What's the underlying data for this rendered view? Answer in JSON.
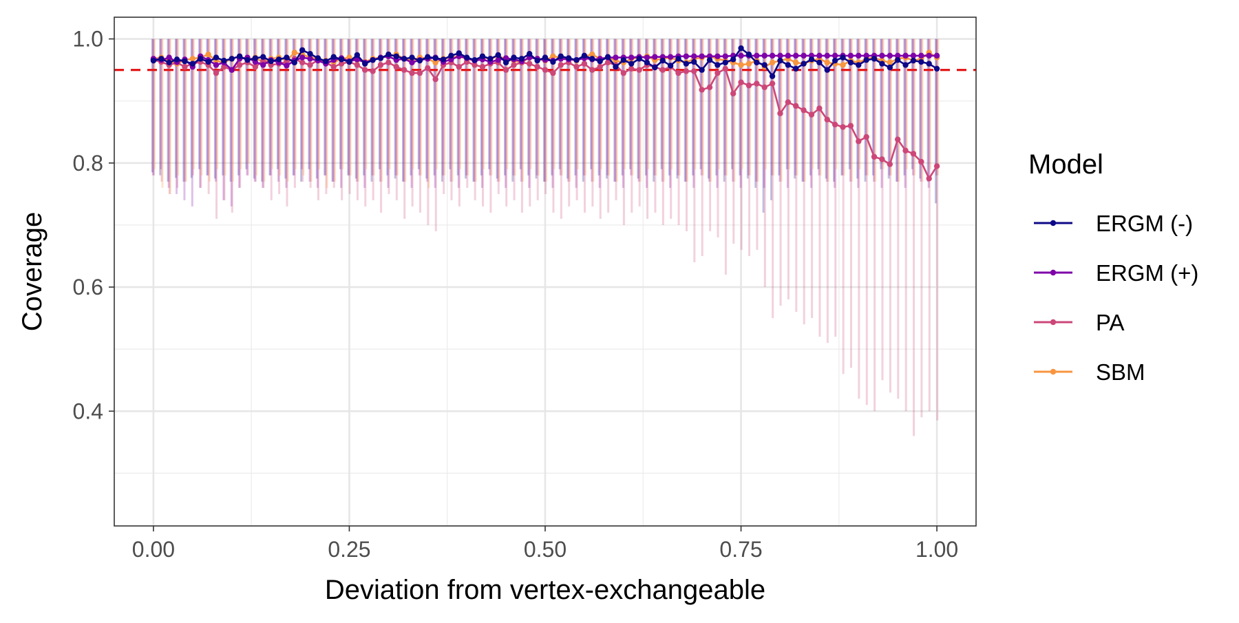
{
  "chart_data": {
    "type": "line",
    "xlabel": "Deviation from vertex-exchangeable",
    "ylabel": "Coverage",
    "xlim": [
      -0.05,
      1.05
    ],
    "ylim": [
      0.215,
      1.035
    ],
    "x_ticks": [
      0.0,
      0.25,
      0.5,
      0.75,
      1.0
    ],
    "x_tick_labels": [
      "0.00",
      "0.25",
      "0.50",
      "0.75",
      "1.00"
    ],
    "y_ticks": [
      0.4,
      0.6,
      0.8,
      1.0
    ],
    "y_tick_labels": [
      "0.4",
      "0.6",
      "0.8",
      "1.0"
    ],
    "reference_line": {
      "y": 0.95,
      "color": "#e41a1c",
      "style": "dashed"
    },
    "legend": {
      "title": "Model",
      "position": "right"
    },
    "grid": true,
    "x": [
      0.0,
      0.01,
      0.02,
      0.03,
      0.04,
      0.05,
      0.06,
      0.07,
      0.08,
      0.09,
      0.1,
      0.11,
      0.12,
      0.13,
      0.14,
      0.15,
      0.16,
      0.17,
      0.18,
      0.19,
      0.2,
      0.21,
      0.22,
      0.23,
      0.24,
      0.25,
      0.26,
      0.27,
      0.28,
      0.29,
      0.3,
      0.31,
      0.32,
      0.33,
      0.34,
      0.35,
      0.36,
      0.37,
      0.38,
      0.39,
      0.4,
      0.41,
      0.42,
      0.43,
      0.44,
      0.45,
      0.46,
      0.47,
      0.48,
      0.49,
      0.5,
      0.51,
      0.52,
      0.53,
      0.54,
      0.55,
      0.56,
      0.57,
      0.58,
      0.59,
      0.6,
      0.61,
      0.62,
      0.63,
      0.64,
      0.65,
      0.66,
      0.67,
      0.68,
      0.69,
      0.7,
      0.71,
      0.72,
      0.73,
      0.74,
      0.75,
      0.76,
      0.77,
      0.78,
      0.79,
      0.8,
      0.81,
      0.82,
      0.83,
      0.84,
      0.85,
      0.86,
      0.87,
      0.88,
      0.89,
      0.9,
      0.91,
      0.92,
      0.93,
      0.94,
      0.95,
      0.96,
      0.97,
      0.98,
      0.99,
      1.0
    ],
    "series": [
      {
        "name": "ERGM (-)",
        "color": "#0d0887",
        "values": [
          0.965,
          0.968,
          0.962,
          0.967,
          0.964,
          0.96,
          0.968,
          0.963,
          0.97,
          0.965,
          0.968,
          0.972,
          0.966,
          0.969,
          0.971,
          0.964,
          0.967,
          0.97,
          0.962,
          0.982,
          0.976,
          0.969,
          0.964,
          0.971,
          0.967,
          0.963,
          0.974,
          0.96,
          0.966,
          0.969,
          0.975,
          0.972,
          0.968,
          0.97,
          0.965,
          0.971,
          0.969,
          0.967,
          0.973,
          0.977,
          0.97,
          0.966,
          0.972,
          0.968,
          0.974,
          0.962,
          0.97,
          0.968,
          0.976,
          0.965,
          0.97,
          0.963,
          0.972,
          0.969,
          0.966,
          0.973,
          0.968,
          0.964,
          0.971,
          0.955,
          0.966,
          0.96,
          0.968,
          0.962,
          0.954,
          0.965,
          0.957,
          0.968,
          0.96,
          0.963,
          0.95,
          0.966,
          0.958,
          0.962,
          0.967,
          0.985,
          0.975,
          0.962,
          0.958,
          0.94,
          0.965,
          0.958,
          0.952,
          0.96,
          0.967,
          0.962,
          0.95,
          0.965,
          0.97,
          0.962,
          0.958,
          0.966,
          0.968,
          0.96,
          0.954,
          0.966,
          0.958,
          0.965,
          0.963,
          0.96,
          0.952
        ],
        "ci_lower": [
          0.785,
          0.78,
          0.77,
          0.776,
          0.77,
          0.776,
          0.79,
          0.78,
          0.775,
          0.78,
          0.77,
          0.78,
          0.79,
          0.775,
          0.77,
          0.78,
          0.79,
          0.775,
          0.78,
          0.77,
          0.79,
          0.775,
          0.78,
          0.77,
          0.79,
          0.78,
          0.775,
          0.78,
          0.77,
          0.79,
          0.78,
          0.775,
          0.77,
          0.78,
          0.79,
          0.775,
          0.78,
          0.77,
          0.79,
          0.78,
          0.775,
          0.77,
          0.78,
          0.79,
          0.775,
          0.78,
          0.77,
          0.79,
          0.78,
          0.775,
          0.77,
          0.78,
          0.79,
          0.775,
          0.78,
          0.77,
          0.79,
          0.78,
          0.775,
          0.77,
          0.78,
          0.79,
          0.775,
          0.78,
          0.77,
          0.79,
          0.78,
          0.775,
          0.77,
          0.78,
          0.79,
          0.775,
          0.78,
          0.77,
          0.79,
          0.78,
          0.775,
          0.76,
          0.72,
          0.74,
          0.78,
          0.79,
          0.775,
          0.77,
          0.78,
          0.79,
          0.775,
          0.77,
          0.78,
          0.79,
          0.775,
          0.77,
          0.78,
          0.79,
          0.775,
          0.77,
          0.78,
          0.79,
          0.775,
          0.77,
          0.735
        ]
      },
      {
        "name": "ERGM (+)",
        "color": "#7e03a8",
        "values": [
          0.968,
          0.966,
          0.97,
          0.963,
          0.967,
          0.955,
          0.972,
          0.966,
          0.958,
          0.962,
          0.95,
          0.968,
          0.97,
          0.963,
          0.958,
          0.966,
          0.962,
          0.957,
          0.965,
          0.97,
          0.968,
          0.965,
          0.96,
          0.966,
          0.969,
          0.964,
          0.967,
          0.962,
          0.966,
          0.97,
          0.972,
          0.966,
          0.968,
          0.962,
          0.966,
          0.968,
          0.97,
          0.963,
          0.967,
          0.972,
          0.969,
          0.965,
          0.967,
          0.963,
          0.966,
          0.969,
          0.967,
          0.964,
          0.97,
          0.968,
          0.966,
          0.965,
          0.968,
          0.967,
          0.966,
          0.969,
          0.967,
          0.968,
          0.97,
          0.97,
          0.97,
          0.97,
          0.971,
          0.97,
          0.971,
          0.971,
          0.971,
          0.972,
          0.972,
          0.972,
          0.972,
          0.972,
          0.972,
          0.972,
          0.973,
          0.973,
          0.973,
          0.973,
          0.973,
          0.973,
          0.973,
          0.973,
          0.973,
          0.973,
          0.973,
          0.973,
          0.973,
          0.973,
          0.973,
          0.973,
          0.973,
          0.973,
          0.973,
          0.973,
          0.973,
          0.973,
          0.973,
          0.973,
          0.973,
          0.973,
          0.973
        ],
        "ci_lower": [
          0.78,
          0.79,
          0.76,
          0.75,
          0.74,
          0.73,
          0.76,
          0.78,
          0.77,
          0.74,
          0.73,
          0.76,
          0.78,
          0.77,
          0.76,
          0.78,
          0.77,
          0.76,
          0.78,
          0.79,
          0.77,
          0.76,
          0.78,
          0.77,
          0.76,
          0.78,
          0.77,
          0.76,
          0.78,
          0.77,
          0.76,
          0.78,
          0.77,
          0.76,
          0.78,
          0.77,
          0.76,
          0.78,
          0.77,
          0.76,
          0.78,
          0.77,
          0.76,
          0.78,
          0.77,
          0.76,
          0.78,
          0.77,
          0.76,
          0.78,
          0.77,
          0.76,
          0.78,
          0.77,
          0.76,
          0.78,
          0.77,
          0.76,
          0.78,
          0.77,
          0.76,
          0.78,
          0.77,
          0.76,
          0.78,
          0.77,
          0.76,
          0.78,
          0.77,
          0.76,
          0.78,
          0.77,
          0.76,
          0.78,
          0.77,
          0.76,
          0.78,
          0.77,
          0.76,
          0.78,
          0.77,
          0.76,
          0.78,
          0.77,
          0.76,
          0.78,
          0.77,
          0.76,
          0.78,
          0.77,
          0.76,
          0.78,
          0.77,
          0.76,
          0.78,
          0.77,
          0.76,
          0.78,
          0.77,
          0.76,
          0.78
        ]
      },
      {
        "name": "PA",
        "color": "#cc4778",
        "values": [
          0.966,
          0.963,
          0.958,
          0.962,
          0.955,
          0.96,
          0.963,
          0.958,
          0.945,
          0.955,
          0.95,
          0.958,
          0.962,
          0.955,
          0.965,
          0.958,
          0.96,
          0.963,
          0.968,
          0.962,
          0.958,
          0.966,
          0.962,
          0.955,
          0.96,
          0.963,
          0.958,
          0.95,
          0.948,
          0.958,
          0.962,
          0.955,
          0.95,
          0.945,
          0.945,
          0.953,
          0.935,
          0.958,
          0.962,
          0.955,
          0.963,
          0.958,
          0.955,
          0.96,
          0.962,
          0.95,
          0.958,
          0.962,
          0.96,
          0.955,
          0.95,
          0.945,
          0.958,
          0.962,
          0.955,
          0.96,
          0.95,
          0.955,
          0.962,
          0.958,
          0.945,
          0.952,
          0.95,
          0.958,
          0.955,
          0.95,
          0.955,
          0.945,
          0.948,
          0.948,
          0.918,
          0.922,
          0.945,
          0.952,
          0.912,
          0.93,
          0.925,
          0.928,
          0.922,
          0.928,
          0.88,
          0.898,
          0.892,
          0.885,
          0.878,
          0.888,
          0.87,
          0.862,
          0.858,
          0.86,
          0.835,
          0.842,
          0.81,
          0.806,
          0.798,
          0.838,
          0.82,
          0.815,
          0.802,
          0.775,
          0.795
        ],
        "ci_lower": [
          0.78,
          0.77,
          0.75,
          0.76,
          0.77,
          0.78,
          0.76,
          0.75,
          0.71,
          0.74,
          0.72,
          0.76,
          0.78,
          0.77,
          0.76,
          0.74,
          0.75,
          0.73,
          0.76,
          0.77,
          0.76,
          0.74,
          0.75,
          0.76,
          0.74,
          0.75,
          0.74,
          0.73,
          0.74,
          0.72,
          0.75,
          0.74,
          0.71,
          0.73,
          0.72,
          0.7,
          0.69,
          0.75,
          0.74,
          0.73,
          0.76,
          0.74,
          0.73,
          0.72,
          0.75,
          0.73,
          0.74,
          0.72,
          0.73,
          0.74,
          0.75,
          0.72,
          0.71,
          0.73,
          0.74,
          0.72,
          0.73,
          0.71,
          0.72,
          0.74,
          0.7,
          0.72,
          0.73,
          0.71,
          0.72,
          0.7,
          0.71,
          0.7,
          0.69,
          0.64,
          0.65,
          0.69,
          0.68,
          0.62,
          0.67,
          0.66,
          0.65,
          0.66,
          0.6,
          0.55,
          0.57,
          0.58,
          0.56,
          0.54,
          0.55,
          0.52,
          0.51,
          0.52,
          0.46,
          0.47,
          0.42,
          0.41,
          0.4,
          0.45,
          0.43,
          0.42,
          0.4,
          0.36,
          0.39,
          0.4,
          0.385
        ]
      },
      {
        "name": "SBM",
        "color": "#f89540",
        "values": [
          0.968,
          0.97,
          0.965,
          0.96,
          0.966,
          0.968,
          0.97,
          0.975,
          0.965,
          0.962,
          0.968,
          0.972,
          0.966,
          0.97,
          0.962,
          0.968,
          0.97,
          0.965,
          0.978,
          0.975,
          0.97,
          0.968,
          0.965,
          0.962,
          0.968,
          0.97,
          0.966,
          0.963,
          0.968,
          0.97,
          0.972,
          0.975,
          0.968,
          0.965,
          0.97,
          0.968,
          0.962,
          0.968,
          0.97,
          0.972,
          0.968,
          0.965,
          0.97,
          0.968,
          0.972,
          0.968,
          0.965,
          0.962,
          0.97,
          0.968,
          0.965,
          0.972,
          0.97,
          0.968,
          0.965,
          0.972,
          0.975,
          0.968,
          0.97,
          0.965,
          0.962,
          0.968,
          0.97,
          0.972,
          0.966,
          0.968,
          0.97,
          0.965,
          0.962,
          0.968,
          0.97,
          0.972,
          0.968,
          0.965,
          0.962,
          0.958,
          0.96,
          0.965,
          0.955,
          0.962,
          0.965,
          0.968,
          0.962,
          0.96,
          0.965,
          0.968,
          0.962,
          0.96,
          0.958,
          0.965,
          0.962,
          0.968,
          0.97,
          0.965,
          0.962,
          0.968,
          0.97,
          0.965,
          0.968,
          0.978,
          0.97
        ],
        "ci_lower": [
          0.79,
          0.76,
          0.75,
          0.78,
          0.77,
          0.79,
          0.78,
          0.77,
          0.79,
          0.78,
          0.77,
          0.79,
          0.8,
          0.78,
          0.77,
          0.79,
          0.78,
          0.77,
          0.79,
          0.78,
          0.77,
          0.79,
          0.76,
          0.77,
          0.79,
          0.78,
          0.77,
          0.79,
          0.78,
          0.77,
          0.79,
          0.78,
          0.77,
          0.79,
          0.78,
          0.76,
          0.79,
          0.78,
          0.77,
          0.79,
          0.78,
          0.77,
          0.79,
          0.78,
          0.77,
          0.79,
          0.78,
          0.77,
          0.79,
          0.78,
          0.77,
          0.79,
          0.78,
          0.77,
          0.79,
          0.78,
          0.77,
          0.79,
          0.78,
          0.77,
          0.79,
          0.78,
          0.77,
          0.79,
          0.78,
          0.77,
          0.79,
          0.78,
          0.77,
          0.79,
          0.78,
          0.77,
          0.79,
          0.78,
          0.77,
          0.79,
          0.78,
          0.77,
          0.79,
          0.78,
          0.77,
          0.79,
          0.78,
          0.77,
          0.79,
          0.78,
          0.77,
          0.79,
          0.78,
          0.77,
          0.79,
          0.78,
          0.77,
          0.79,
          0.78,
          0.77,
          0.79,
          0.78,
          0.77,
          0.79,
          0.78
        ]
      }
    ]
  }
}
